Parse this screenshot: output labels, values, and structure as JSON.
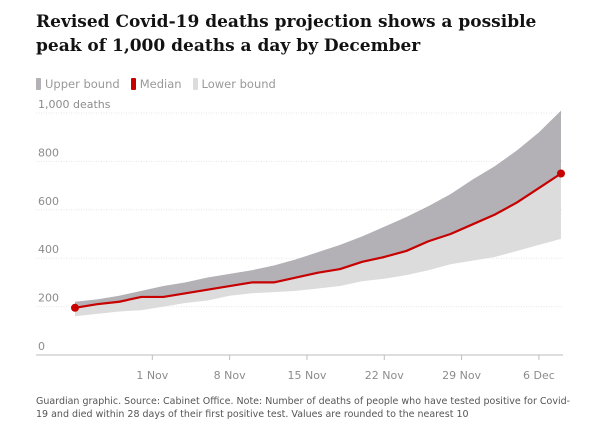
{
  "title": "Revised Covid-19 deaths projection shows a possible peak of 1,000 deaths a day by December",
  "legend": [
    {
      "name": "upper",
      "label": "Upper bound",
      "color": "#b3b1b6"
    },
    {
      "name": "median",
      "label": "Median",
      "color": "#c70000"
    },
    {
      "name": "lower",
      "label": "Lower bound",
      "color": "#dcdcdc"
    }
  ],
  "footer": "Guardian graphic. Source: Cabinet Office. Note: Number of deaths of people who have tested positive for Covid-19 and died within 28 days of their first positive test. Values are rounded to the nearest 10",
  "chart_data": {
    "type": "area",
    "title": "Revised Covid-19 deaths projection shows a possible peak of 1,000 deaths a day by December",
    "x_ticks": [
      {
        "date": "2020-11-01",
        "label": "1 Nov"
      },
      {
        "date": "2020-11-08",
        "label": "8 Nov"
      },
      {
        "date": "2020-11-15",
        "label": "15 Nov"
      },
      {
        "date": "2020-11-22",
        "label": "22 Nov"
      },
      {
        "date": "2020-11-29",
        "label": "29 Nov"
      },
      {
        "date": "2020-12-06",
        "label": "6 Dec"
      }
    ],
    "y_ticks": [
      {
        "value": 0,
        "label": "0"
      },
      {
        "value": 200,
        "label": "200"
      },
      {
        "value": 400,
        "label": "400"
      },
      {
        "value": 600,
        "label": "600"
      },
      {
        "value": 800,
        "label": "800"
      },
      {
        "value": 1000,
        "label": "1,000 deaths"
      }
    ],
    "ylim": [
      0,
      1000
    ],
    "xlim": [
      "2020-10-25",
      "2020-12-08"
    ],
    "grid": true,
    "legend_position": "top-left",
    "x": [
      "2020-10-25",
      "2020-10-27",
      "2020-10-29",
      "2020-10-31",
      "2020-11-02",
      "2020-11-04",
      "2020-11-06",
      "2020-11-08",
      "2020-11-10",
      "2020-11-12",
      "2020-11-14",
      "2020-11-16",
      "2020-11-18",
      "2020-11-20",
      "2020-11-22",
      "2020-11-24",
      "2020-11-26",
      "2020-11-28",
      "2020-11-30",
      "2020-12-02",
      "2020-12-04",
      "2020-12-06",
      "2020-12-08"
    ],
    "series": [
      {
        "name": "Upper bound",
        "values": [
          220,
          230,
          245,
          265,
          285,
          300,
          320,
          335,
          350,
          370,
          395,
          425,
          455,
          490,
          530,
          570,
          615,
          665,
          725,
          780,
          845,
          920,
          1010
        ]
      },
      {
        "name": "Median",
        "values": [
          195,
          210,
          220,
          240,
          240,
          255,
          270,
          285,
          300,
          300,
          320,
          340,
          355,
          385,
          405,
          430,
          470,
          500,
          540,
          580,
          630,
          690,
          750
        ]
      },
      {
        "name": "Lower bound",
        "values": [
          160,
          170,
          180,
          185,
          200,
          215,
          225,
          245,
          255,
          260,
          265,
          275,
          285,
          305,
          315,
          330,
          350,
          375,
          390,
          405,
          430,
          455,
          480
        ]
      }
    ]
  }
}
